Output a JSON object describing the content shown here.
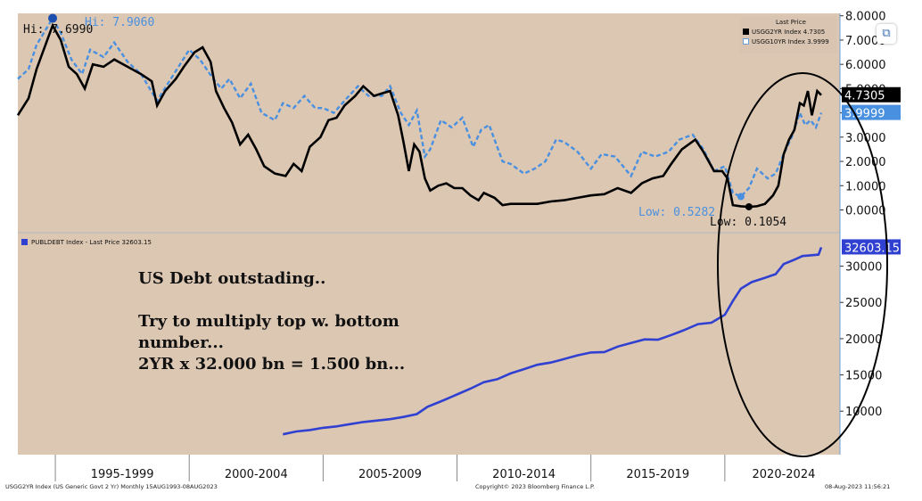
{
  "chart_data": [
    {
      "type": "line",
      "panel": "top",
      "legend_header": "Last Price",
      "ylim": [
        -0.9,
        8.1
      ],
      "yticks": [
        "8.0000",
        "7.0000",
        "6.0000",
        "5.0000",
        "4.0000",
        "3.0000",
        "2.0000",
        "1.0000",
        "0.0000"
      ],
      "series": [
        {
          "name": "USGG2YR Index",
          "last": "4.7305",
          "last_label": "4.7305",
          "color": "#000000",
          "points": [
            [
              1993.6,
              3.9
            ],
            [
              1994.0,
              4.6
            ],
            [
              1994.3,
              5.8
            ],
            [
              1994.9,
              7.6
            ],
            [
              1995.2,
              7.0
            ],
            [
              1995.5,
              5.9
            ],
            [
              1995.8,
              5.6
            ],
            [
              1996.1,
              5.0
            ],
            [
              1996.4,
              6.0
            ],
            [
              1996.8,
              5.9
            ],
            [
              1997.2,
              6.2
            ],
            [
              1997.7,
              5.9
            ],
            [
              1998.2,
              5.6
            ],
            [
              1998.6,
              5.3
            ],
            [
              1998.8,
              4.3
            ],
            [
              1999.1,
              4.9
            ],
            [
              1999.5,
              5.4
            ],
            [
              1999.8,
              5.9
            ],
            [
              2000.2,
              6.5
            ],
            [
              2000.5,
              6.7
            ],
            [
              2000.8,
              6.1
            ],
            [
              2001.0,
              4.9
            ],
            [
              2001.3,
              4.2
            ],
            [
              2001.6,
              3.6
            ],
            [
              2001.9,
              2.7
            ],
            [
              2002.2,
              3.1
            ],
            [
              2002.5,
              2.5
            ],
            [
              2002.8,
              1.8
            ],
            [
              2003.2,
              1.5
            ],
            [
              2003.6,
              1.4
            ],
            [
              2003.9,
              1.9
            ],
            [
              2004.2,
              1.6
            ],
            [
              2004.5,
              2.6
            ],
            [
              2004.9,
              3.0
            ],
            [
              2005.2,
              3.7
            ],
            [
              2005.5,
              3.8
            ],
            [
              2005.8,
              4.3
            ],
            [
              2006.2,
              4.7
            ],
            [
              2006.5,
              5.1
            ],
            [
              2006.9,
              4.7
            ],
            [
              2007.2,
              4.8
            ],
            [
              2007.5,
              4.9
            ],
            [
              2007.8,
              3.9
            ],
            [
              2008.0,
              2.8
            ],
            [
              2008.2,
              1.6
            ],
            [
              2008.4,
              2.7
            ],
            [
              2008.6,
              2.4
            ],
            [
              2008.8,
              1.3
            ],
            [
              2009.0,
              0.8
            ],
            [
              2009.3,
              1.0
            ],
            [
              2009.6,
              1.1
            ],
            [
              2009.9,
              0.9
            ],
            [
              2010.2,
              0.9
            ],
            [
              2010.5,
              0.6
            ],
            [
              2010.8,
              0.4
            ],
            [
              2011.0,
              0.7
            ],
            [
              2011.4,
              0.5
            ],
            [
              2011.7,
              0.2
            ],
            [
              2012.0,
              0.25
            ],
            [
              2012.5,
              0.25
            ],
            [
              2013.0,
              0.25
            ],
            [
              2013.5,
              0.35
            ],
            [
              2014.0,
              0.4
            ],
            [
              2014.5,
              0.5
            ],
            [
              2015.0,
              0.6
            ],
            [
              2015.5,
              0.65
            ],
            [
              2016.0,
              0.9
            ],
            [
              2016.5,
              0.7
            ],
            [
              2016.9,
              1.1
            ],
            [
              2017.3,
              1.3
            ],
            [
              2017.7,
              1.4
            ],
            [
              2018.0,
              1.9
            ],
            [
              2018.4,
              2.5
            ],
            [
              2018.9,
              2.9
            ],
            [
              2019.2,
              2.4
            ],
            [
              2019.6,
              1.6
            ],
            [
              2019.9,
              1.6
            ],
            [
              2020.1,
              1.3
            ],
            [
              2020.3,
              0.2
            ],
            [
              2020.6,
              0.15
            ],
            [
              2020.9,
              0.13
            ],
            [
              2021.2,
              0.15
            ],
            [
              2021.5,
              0.25
            ],
            [
              2021.8,
              0.6
            ],
            [
              2022.0,
              1.0
            ],
            [
              2022.2,
              2.3
            ],
            [
              2022.4,
              2.9
            ],
            [
              2022.6,
              3.3
            ],
            [
              2022.8,
              4.4
            ],
            [
              2022.95,
              4.3
            ],
            [
              2023.1,
              4.9
            ],
            [
              2023.25,
              3.9
            ],
            [
              2023.45,
              4.9
            ],
            [
              2023.6,
              4.73
            ]
          ]
        },
        {
          "name": "USGG10YR Index",
          "last": "3.9999",
          "last_label": "3.9999",
          "color": "#4a90e0",
          "points": [
            [
              1993.6,
              5.4
            ],
            [
              1994.0,
              5.8
            ],
            [
              1994.3,
              6.8
            ],
            [
              1994.9,
              7.9
            ],
            [
              1995.2,
              7.3
            ],
            [
              1995.6,
              6.2
            ],
            [
              1996.0,
              5.6
            ],
            [
              1996.3,
              6.6
            ],
            [
              1996.8,
              6.3
            ],
            [
              1997.2,
              6.9
            ],
            [
              1997.7,
              6.1
            ],
            [
              1998.2,
              5.6
            ],
            [
              1998.8,
              4.5
            ],
            [
              1999.2,
              5.2
            ],
            [
              1999.6,
              5.9
            ],
            [
              2000.0,
              6.6
            ],
            [
              2000.4,
              6.2
            ],
            [
              2000.9,
              5.4
            ],
            [
              2001.2,
              5.0
            ],
            [
              2001.5,
              5.4
            ],
            [
              2001.9,
              4.6
            ],
            [
              2002.3,
              5.2
            ],
            [
              2002.7,
              4.0
            ],
            [
              2003.2,
              3.7
            ],
            [
              2003.5,
              4.4
            ],
            [
              2003.9,
              4.2
            ],
            [
              2004.3,
              4.7
            ],
            [
              2004.7,
              4.2
            ],
            [
              2005.0,
              4.2
            ],
            [
              2005.4,
              4.0
            ],
            [
              2005.8,
              4.5
            ],
            [
              2006.3,
              5.1
            ],
            [
              2006.7,
              4.7
            ],
            [
              2007.2,
              4.7
            ],
            [
              2007.5,
              5.1
            ],
            [
              2007.9,
              4.0
            ],
            [
              2008.2,
              3.5
            ],
            [
              2008.5,
              4.1
            ],
            [
              2008.8,
              2.2
            ],
            [
              2009.0,
              2.5
            ],
            [
              2009.4,
              3.7
            ],
            [
              2009.8,
              3.4
            ],
            [
              2010.2,
              3.8
            ],
            [
              2010.6,
              2.6
            ],
            [
              2010.9,
              3.3
            ],
            [
              2011.2,
              3.5
            ],
            [
              2011.7,
              2.0
            ],
            [
              2012.0,
              1.9
            ],
            [
              2012.5,
              1.5
            ],
            [
              2012.9,
              1.7
            ],
            [
              2013.3,
              2.0
            ],
            [
              2013.7,
              2.9
            ],
            [
              2014.0,
              2.8
            ],
            [
              2014.5,
              2.4
            ],
            [
              2015.0,
              1.7
            ],
            [
              2015.4,
              2.3
            ],
            [
              2015.9,
              2.2
            ],
            [
              2016.5,
              1.4
            ],
            [
              2016.9,
              2.4
            ],
            [
              2017.4,
              2.2
            ],
            [
              2017.9,
              2.4
            ],
            [
              2018.3,
              2.9
            ],
            [
              2018.8,
              3.1
            ],
            [
              2019.2,
              2.5
            ],
            [
              2019.6,
              1.6
            ],
            [
              2020.0,
              1.8
            ],
            [
              2020.3,
              0.7
            ],
            [
              2020.6,
              0.55
            ],
            [
              2020.9,
              0.9
            ],
            [
              2021.2,
              1.7
            ],
            [
              2021.6,
              1.3
            ],
            [
              2021.9,
              1.5
            ],
            [
              2022.2,
              2.3
            ],
            [
              2022.5,
              3.0
            ],
            [
              2022.8,
              4.0
            ],
            [
              2023.0,
              3.5
            ],
            [
              2023.2,
              3.7
            ],
            [
              2023.4,
              3.4
            ],
            [
              2023.6,
              4.0
            ]
          ]
        }
      ],
      "annotations": {
        "hi_black": "Hi: 7.6990",
        "hi_blue": "Hi: 7.9060",
        "low_blue": "Low: 0.5282",
        "low_black": "Low: 0.1054"
      }
    },
    {
      "type": "line",
      "panel": "bottom",
      "ylim": [
        4000,
        34500
      ],
      "yticks": [
        "30000",
        "25000",
        "20000",
        "15000",
        "10000"
      ],
      "series": [
        {
          "name": "PUBLDEBT Index - Last Price 32603.15",
          "last": "32603.15",
          "last_label": "32603.15",
          "color": "#3040d0",
          "points": [
            [
              2003.5,
              6800
            ],
            [
              2004.0,
              7200
            ],
            [
              2004.5,
              7400
            ],
            [
              2005.0,
              7700
            ],
            [
              2005.5,
              7900
            ],
            [
              2006.0,
              8200
            ],
            [
              2006.5,
              8500
            ],
            [
              2007.0,
              8700
            ],
            [
              2007.5,
              8900
            ],
            [
              2008.0,
              9200
            ],
            [
              2008.5,
              9600
            ],
            [
              2008.9,
              10600
            ],
            [
              2009.5,
              11500
            ],
            [
              2010.0,
              12300
            ],
            [
              2010.5,
              13100
            ],
            [
              2011.0,
              14000
            ],
            [
              2011.5,
              14400
            ],
            [
              2012.0,
              15200
            ],
            [
              2012.5,
              15800
            ],
            [
              2013.0,
              16400
            ],
            [
              2013.5,
              16700
            ],
            [
              2014.0,
              17200
            ],
            [
              2014.5,
              17700
            ],
            [
              2015.0,
              18100
            ],
            [
              2015.5,
              18150
            ],
            [
              2016.0,
              18900
            ],
            [
              2016.5,
              19400
            ],
            [
              2017.0,
              19900
            ],
            [
              2017.5,
              19850
            ],
            [
              2018.0,
              20500
            ],
            [
              2018.5,
              21200
            ],
            [
              2019.0,
              22000
            ],
            [
              2019.5,
              22200
            ],
            [
              2020.0,
              23300
            ],
            [
              2020.3,
              25200
            ],
            [
              2020.6,
              26900
            ],
            [
              2021.0,
              27800
            ],
            [
              2021.5,
              28400
            ],
            [
              2021.9,
              28900
            ],
            [
              2022.2,
              30300
            ],
            [
              2022.6,
              30900
            ],
            [
              2022.9,
              31400
            ],
            [
              2023.2,
              31500
            ],
            [
              2023.5,
              31600
            ],
            [
              2023.6,
              32600
            ]
          ]
        }
      ]
    }
  ],
  "x_axis": {
    "range": [
      1993.6,
      2024.3
    ],
    "labels": [
      {
        "label": "1995-1999",
        "at": 1997.5
      },
      {
        "label": "2000-2004",
        "at": 2002.5
      },
      {
        "label": "2005-2009",
        "at": 2007.5
      },
      {
        "label": "2010-2014",
        "at": 2012.5
      },
      {
        "label": "2015-2019",
        "at": 2017.5
      },
      {
        "label": "2020-2024",
        "at": 2022.2
      }
    ],
    "dividers": [
      1995.0,
      2000.0,
      2005.0,
      2010.0,
      2015.0,
      2020.0
    ]
  },
  "annotation_text": {
    "line1": "US Debt outstading..",
    "line2": "Try to multiply top w. bottom",
    "line3": "number...",
    "line4": "2YR x 32.000 bn = 1.500 bn..."
  },
  "footer": {
    "left": "USGG2YR Index (US Generic Govt 2 Yr)  Monthly 15AUG1993-08AUG2023",
    "center": "Copyright© 2023 Bloomberg Finance L.P.",
    "right": "08-Aug-2023 11:56:21"
  },
  "colors": {
    "plot_bg": "#dcc7b3",
    "axis_bg": "#ffffff",
    "black_series": "#000000",
    "blue10y": "#4a90e0",
    "debt": "#3040d0"
  },
  "share_icon": "share-icon"
}
